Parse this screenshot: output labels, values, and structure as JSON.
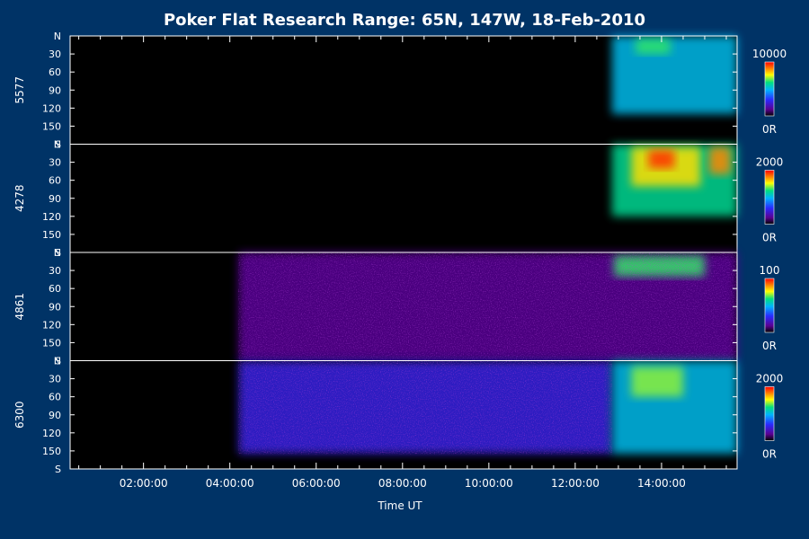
{
  "chart_data": {
    "type": "heatmap",
    "title": "Poker Flat Research Range: 65N, 147W, 18-Feb-2010",
    "xlabel": "Time UT",
    "x_tick_labels": [
      "02:00:00",
      "04:00:00",
      "06:00:00",
      "08:00:00",
      "10:00:00",
      "12:00:00",
      "14:00:00"
    ],
    "x_tick_values_hours": [
      2,
      4,
      6,
      8,
      10,
      12,
      14
    ],
    "xlim_hours": [
      0.3,
      15.75
    ],
    "y_tick_labels": [
      "N",
      "30",
      "60",
      "90",
      "120",
      "150",
      "S"
    ],
    "y_tick_values": [
      0,
      30,
      60,
      90,
      120,
      150,
      180
    ],
    "ylim": [
      0,
      180
    ],
    "colormap": [
      "#000000",
      "#5a0090",
      "#2a2aff",
      "#00b4ff",
      "#00e080",
      "#ffff00",
      "#ff8000",
      "#ff0000"
    ],
    "panels": [
      {
        "label": "5577",
        "cbar_max": "10000",
        "cbar_min": "0R",
        "activity": [
          {
            "t": [
              12.85,
              15.75
            ],
            "y": [
              0,
              130
            ],
            "level": 0.45
          },
          {
            "t": [
              13.4,
              14.2
            ],
            "y": [
              5,
              30
            ],
            "level": 0.6
          }
        ]
      },
      {
        "label": "4278",
        "cbar_max": "2000",
        "cbar_min": "0R",
        "activity": [
          {
            "t": [
              12.85,
              15.75
            ],
            "y": [
              0,
              120
            ],
            "level": 0.55
          },
          {
            "t": [
              13.3,
              14.9
            ],
            "y": [
              5,
              70
            ],
            "level": 0.75
          },
          {
            "t": [
              13.7,
              14.3
            ],
            "y": [
              10,
              40
            ],
            "level": 0.95
          },
          {
            "t": [
              15.1,
              15.6
            ],
            "y": [
              5,
              50
            ],
            "level": 0.85
          }
        ]
      },
      {
        "label": "4861",
        "cbar_max": "100",
        "cbar_min": "0R",
        "activity": [
          {
            "t": [
              4.2,
              15.75
            ],
            "y": [
              0,
              180
            ],
            "level": 0.15
          },
          {
            "t": [
              12.9,
              15.0
            ],
            "y": [
              5,
              40
            ],
            "level": 0.6
          }
        ]
      },
      {
        "label": "6300",
        "cbar_max": "2000",
        "cbar_min": "0R",
        "activity": [
          {
            "t": [
              4.2,
              12.85
            ],
            "y": [
              0,
              155
            ],
            "level": 0.25
          },
          {
            "t": [
              12.85,
              15.75
            ],
            "y": [
              0,
              155
            ],
            "level": 0.45
          },
          {
            "t": [
              13.3,
              14.5
            ],
            "y": [
              10,
              60
            ],
            "level": 0.65
          }
        ]
      }
    ]
  }
}
